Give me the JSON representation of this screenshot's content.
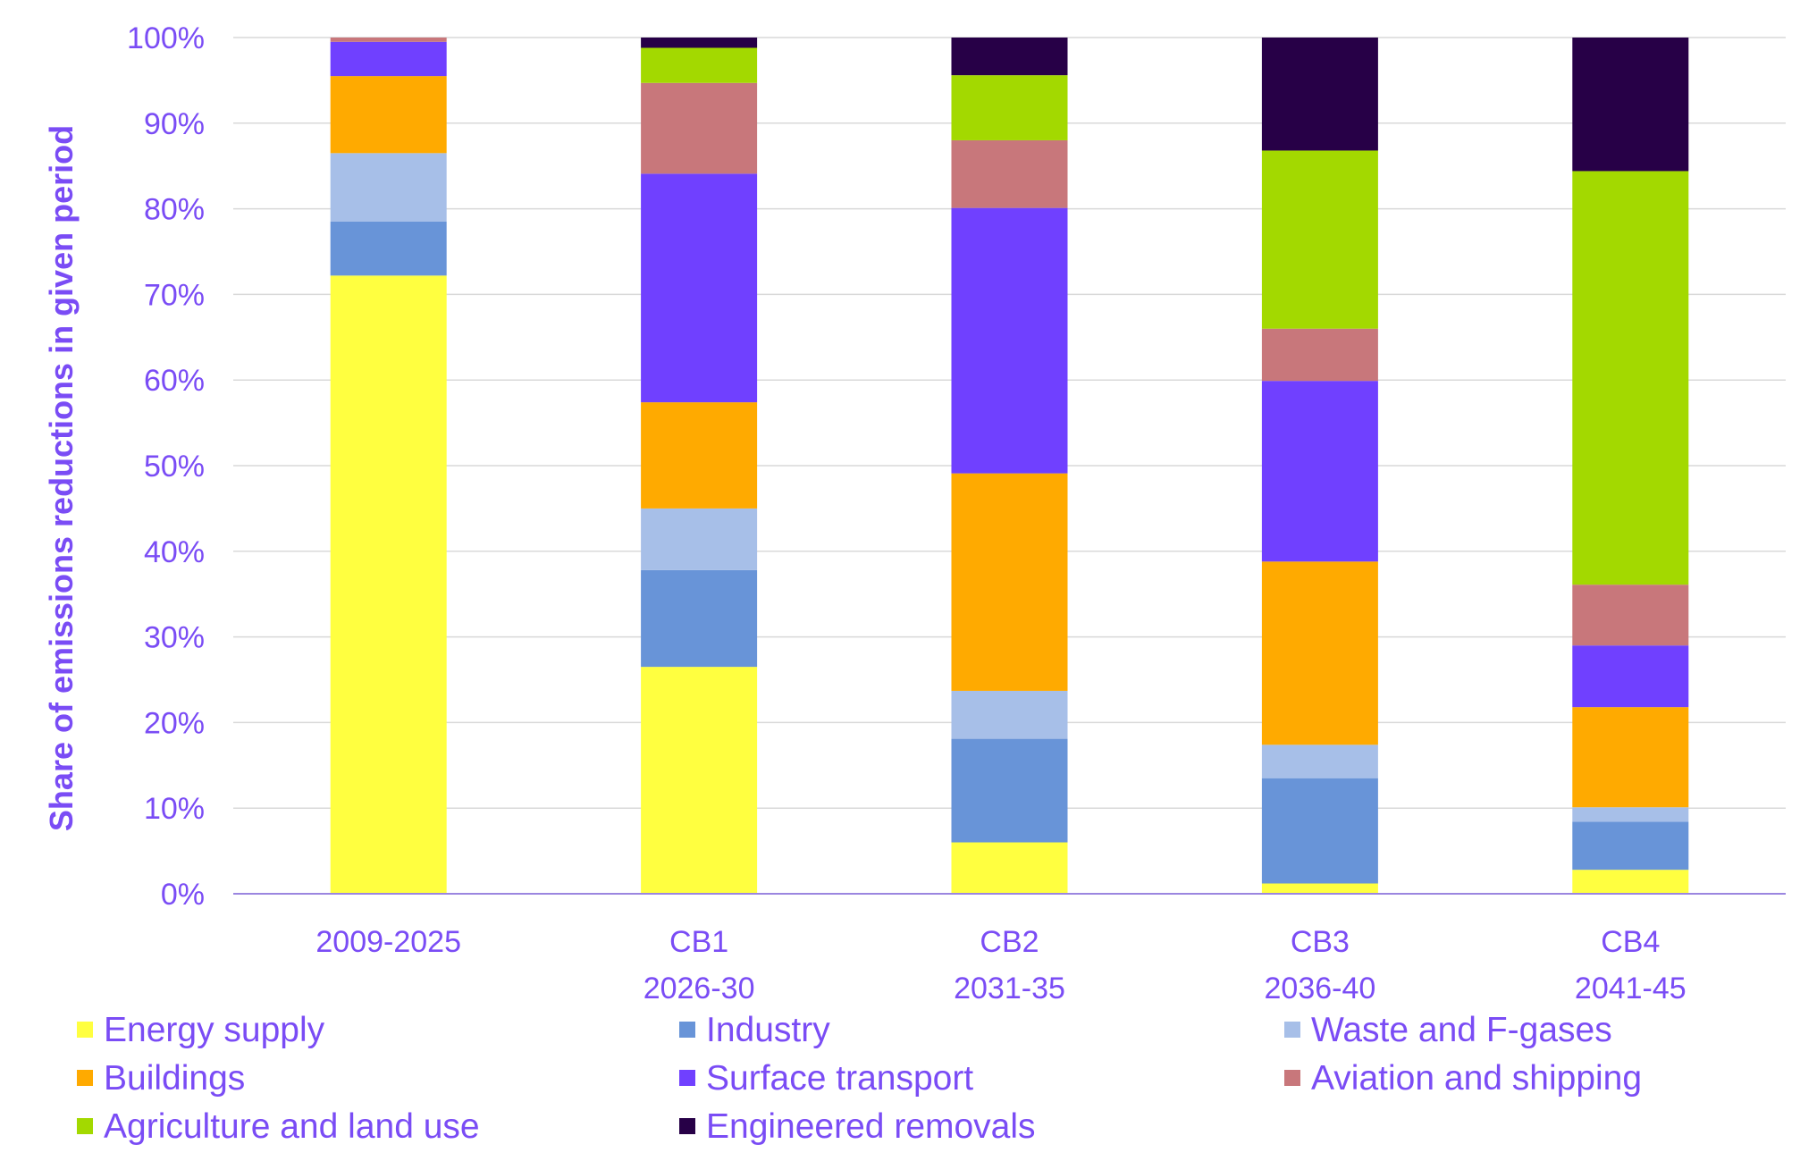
{
  "chart_data": {
    "type": "bar",
    "stacked": true,
    "ylabel": "Share of emissions reductions in given period",
    "ylim": [
      0,
      100
    ],
    "yticks": [
      "0%",
      "10%",
      "20%",
      "30%",
      "40%",
      "50%",
      "60%",
      "70%",
      "80%",
      "90%",
      "100%"
    ],
    "categories": [
      [
        "2009-2025"
      ],
      [
        "CB1",
        "2026-30"
      ],
      [
        "CB2",
        "2031-35"
      ],
      [
        "CB3",
        "2036-40"
      ],
      [
        "CB4",
        "2041-45"
      ]
    ],
    "series": [
      {
        "name": "Energy supply",
        "color": "#ffff40",
        "values": [
          72.2,
          26.5,
          6.0,
          1.2,
          2.8
        ]
      },
      {
        "name": "Industry",
        "color": "#6894d8",
        "values": [
          6.3,
          11.3,
          12.1,
          12.3,
          5.6
        ]
      },
      {
        "name": "Waste and F-gases",
        "color": "#a7bfe8",
        "values": [
          8.0,
          7.2,
          5.6,
          3.9,
          1.7
        ]
      },
      {
        "name": "Buildings",
        "color": "#ffaa00",
        "values": [
          9.0,
          12.4,
          25.4,
          21.4,
          11.7
        ]
      },
      {
        "name": "Surface transport",
        "color": "#7040ff",
        "values": [
          4.0,
          26.7,
          31.0,
          21.1,
          7.2
        ]
      },
      {
        "name": "Aviation and shipping",
        "color": "#c8777b",
        "values": [
          0.5,
          10.6,
          7.9,
          6.1,
          7.1
        ]
      },
      {
        "name": "Agriculture and land use",
        "color": "#a3d900",
        "values": [
          0.0,
          4.1,
          7.6,
          20.8,
          48.3
        ]
      },
      {
        "name": "Engineered removals",
        "color": "#270047",
        "values": [
          0.0,
          1.2,
          4.4,
          13.2,
          15.6
        ]
      }
    ]
  }
}
